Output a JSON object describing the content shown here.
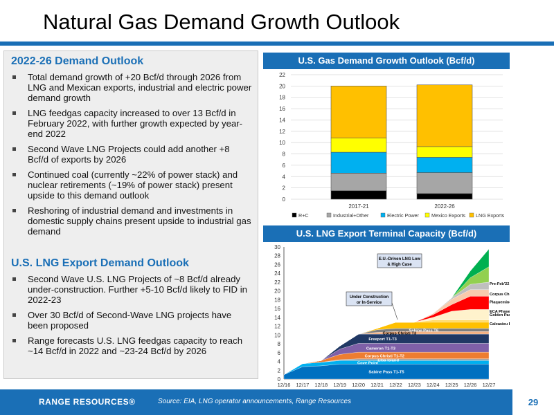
{
  "slide": {
    "title": "Natural Gas Demand Growth Outlook",
    "page_number": "29"
  },
  "left_panel": {
    "demand_heading": "2022-26 Demand Outlook",
    "demand_bullets": [
      "Total demand growth of +20 Bcf/d through 2026 from LNG and Mexican exports, industrial and electric power demand growth",
      "LNG feedgas capacity increased to over 13 Bcf/d in February 2022, with further growth expected by year-end 2022",
      "Second Wave LNG Projects could add another +8 Bcf/d of exports by 2026",
      "Continued coal (currently ~22% of power stack) and nuclear retirements (~19% of power stack) present upside to this demand outlook",
      "Reshoring of industrial demand and investments in domestic supply chains present upside to industrial gas demand"
    ],
    "lng_heading": "U.S. LNG Export Demand Outlook",
    "lng_bullets": [
      "Second Wave U.S. LNG Projects of ~8 Bcf/d already under-construction. Further +5-10 Bcf/d likely to FID in 2022-23",
      "Over 30 Bcf/d of Second-Wave LNG projects have been proposed",
      "Range forecasts U.S. LNG feedgas capacity to reach ~14 Bcf/d in 2022 and ~23-24 Bcf/d by 2026"
    ]
  },
  "footer": {
    "logo_text": "RANGE RESOURCES®",
    "source": "Source: EIA, LNG operator announcements, Range Resources"
  },
  "colors": {
    "brand_blue": "#1a6fb6",
    "rc": "#000000",
    "industrial_other": "#a6a6a6",
    "electric_power": "#00b0f0",
    "mexico_exports": "#ffff00",
    "lng_exports": "#ffc000"
  },
  "chart_data": [
    {
      "type": "bar",
      "stacked": true,
      "title": "U.S. Gas Demand Growth Outlook (Bcf/d)",
      "categories": [
        "2017-21",
        "2022-26"
      ],
      "ylim": [
        0,
        22
      ],
      "yticks": [
        "0",
        "2",
        "4",
        "6",
        "8",
        "10",
        "12",
        "14",
        "16",
        "18",
        "20",
        "22"
      ],
      "grid": true,
      "legend_position": "bottom",
      "series": [
        {
          "name": "R+C",
          "color": "#000000",
          "values": [
            1.5,
            1.0
          ]
        },
        {
          "name": "Industrial+Other",
          "color": "#a6a6a6",
          "values": [
            3.1,
            3.7
          ]
        },
        {
          "name": "Electric Power",
          "color": "#00b0f0",
          "values": [
            3.7,
            2.7
          ]
        },
        {
          "name": "Mexico Exports",
          "color": "#ffff00",
          "values": [
            2.5,
            1.9
          ]
        },
        {
          "name": "LNG Exports",
          "color": "#ffc000",
          "values": [
            9.2,
            10.9
          ]
        }
      ]
    },
    {
      "type": "area",
      "stacked": true,
      "title": "U.S. LNG Export Terminal Capacity (Bcf/d)",
      "x": [
        "12/16",
        "12/17",
        "12/18",
        "12/19",
        "12/20",
        "12/21",
        "12/22",
        "12/23",
        "12/24",
        "12/25",
        "12/26",
        "12/27"
      ],
      "ylim": [
        0,
        30
      ],
      "yticks": [
        "0",
        "2",
        "4",
        "6",
        "8",
        "10",
        "12",
        "14",
        "16",
        "18",
        "20",
        "22",
        "24",
        "26",
        "28",
        "30"
      ],
      "grid": false,
      "series": [
        {
          "name": "Sabine Pass T1-T5",
          "color": "#0070c0",
          "label_color": "#ffffff",
          "values": [
            1.0,
            2.8,
            3.0,
            3.4,
            3.4,
            3.4,
            3.4,
            3.4,
            3.4,
            3.4,
            3.4,
            3.4
          ]
        },
        {
          "name": "Cove Point",
          "color": "#00b0f0",
          "label_color": "#ffffff",
          "values": [
            0,
            0.7,
            0.8,
            0.8,
            0.8,
            0.8,
            0.8,
            0.8,
            0.8,
            0.8,
            0.8,
            0.8
          ]
        },
        {
          "name": "Elba Island",
          "color": "#a6a6a6",
          "label_color": "#ffffff",
          "values": [
            0,
            0,
            0,
            0.2,
            0.4,
            0.4,
            0.4,
            0.4,
            0.4,
            0.4,
            0.4,
            0.4
          ]
        },
        {
          "name": "Corpus Christi T1-T2",
          "color": "#ed7d31",
          "label_color": "#ffffff",
          "values": [
            0,
            0,
            0.4,
            1.2,
            1.5,
            1.5,
            1.5,
            1.5,
            1.5,
            1.5,
            1.5,
            1.5
          ]
        },
        {
          "name": "Cameron T1-T3",
          "color": "#7f60a8",
          "label_color": "#ffffff",
          "values": [
            0,
            0,
            0,
            1.2,
            2.0,
            2.0,
            2.0,
            2.0,
            2.0,
            2.0,
            2.0,
            2.0
          ]
        },
        {
          "name": "Freeport T1-T3",
          "color": "#203864",
          "label_color": "#ffffff",
          "values": [
            0,
            0,
            0,
            0.7,
            2.1,
            2.1,
            2.1,
            2.1,
            2.1,
            2.1,
            2.1,
            2.1
          ]
        },
        {
          "name": "Corpus Christi T3",
          "color": "#f4b183",
          "label_color": "#000000",
          "values": [
            0,
            0,
            0,
            0,
            0,
            0.4,
            0.6,
            0.6,
            0.6,
            0.6,
            0.6,
            0.6
          ]
        },
        {
          "name": "Sabine Pass T6",
          "color": "#7f7f7f",
          "label_color": "#ffffff",
          "values": [
            0,
            0,
            0,
            0,
            0,
            0.6,
            0.7,
            0.7,
            0.7,
            0.7,
            0.7,
            0.7
          ]
        },
        {
          "name": "Calcasieu Pass",
          "color": "#ffc000",
          "label_color": "#000000",
          "values": [
            0,
            0,
            0,
            0,
            0,
            0.3,
            1.4,
            1.4,
            1.4,
            1.4,
            1.4,
            1.4
          ]
        },
        {
          "name": "ECA Phase 1",
          "color": "#ffd966",
          "label_color": "#000000",
          "values": [
            0,
            0,
            0,
            0,
            0,
            0,
            0,
            0,
            0.5,
            0.5,
            0.5,
            0.5
          ]
        },
        {
          "name": "Golden Pass T1-T3",
          "color": "#fff2cc",
          "label_color": "#000000",
          "values": [
            0,
            0,
            0,
            0,
            0,
            0,
            0,
            0,
            0.6,
            2.0,
            2.4,
            2.4
          ]
        },
        {
          "name": "Plaquemines",
          "color": "#ff0000",
          "label_color": "#000000",
          "values": [
            0,
            0,
            0,
            0,
            0,
            0,
            0,
            0,
            0.6,
            1.5,
            3.0,
            3.0
          ]
        },
        {
          "name": "Corpus Christi Stg3",
          "color": "#f8cbad",
          "label_color": "#000000",
          "values": [
            0,
            0,
            0,
            0,
            0,
            0,
            0,
            0,
            0.3,
            1.2,
            1.5,
            1.5
          ]
        },
        {
          "name": "Pre-Feb'22 Likely FID",
          "color": "#bfbfbf",
          "label_color": "#000000",
          "values": [
            0,
            0,
            0,
            0,
            0,
            0,
            0,
            0,
            0,
            0.3,
            1.2,
            1.7
          ]
        },
        {
          "name": "E.U.-Driven LNG Low Case",
          "color": "#92d050",
          "label_color": "#000000",
          "values": [
            0,
            0,
            0,
            0,
            0,
            0,
            0,
            0,
            0,
            0,
            1.5,
            3.5
          ]
        },
        {
          "name": "E.U.-Driven LNG High Case",
          "color": "#00b050",
          "label_color": "#000000",
          "values": [
            0,
            0,
            0,
            0,
            0,
            0,
            0,
            0,
            0,
            0,
            1.5,
            4.0
          ]
        }
      ],
      "annotations": [
        "E.U.-Driven LNG Low & High Case",
        "Under Construction or In-Service"
      ]
    }
  ]
}
